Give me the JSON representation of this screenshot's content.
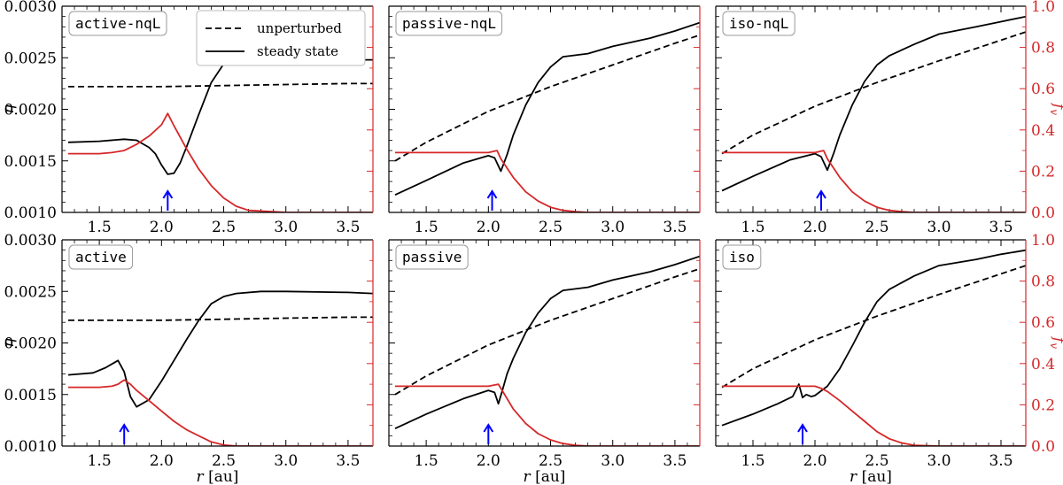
{
  "figure": {
    "xlabel_italic": "r",
    "xlabel_unit": " [au]",
    "ylabel_left": "η",
    "ylabel_right_main": "f",
    "ylabel_right_sub": "v",
    "legend": {
      "dashed_label": "unperturbed",
      "solid_label": "steady state"
    },
    "colors": {
      "steady": "#000000",
      "unperturbed": "#000000",
      "fv": "#d62728",
      "arrow": "#0000ff"
    }
  },
  "chart_data": [
    {
      "type": "line",
      "panel": "active-nqL",
      "label": "active-nqL",
      "row": 0,
      "col": 0,
      "xlim": [
        1.2,
        3.7
      ],
      "ylim_left": [
        0.001,
        0.003
      ],
      "ylim_right": [
        0,
        1
      ],
      "xticks": [
        "1.5",
        "2.0",
        "2.5",
        "3.0",
        "3.5"
      ],
      "yticks_left": [
        "0.0010",
        "0.0015",
        "0.0020",
        "0.0025",
        "0.0030"
      ],
      "yticks_right": [
        "0.0",
        "0.2",
        "0.4",
        "0.6",
        "0.8",
        "1.0"
      ],
      "arrow_x": 2.05,
      "series": [
        {
          "name": "unperturbed",
          "axis": "left",
          "style": "dashed",
          "x": [
            1.25,
            1.5,
            1.75,
            2.0,
            2.5,
            3.0,
            3.5,
            3.7
          ],
          "y": [
            0.00222,
            0.00222,
            0.00222,
            0.00222,
            0.00223,
            0.00224,
            0.00225,
            0.00225
          ]
        },
        {
          "name": "steady state",
          "axis": "left",
          "style": "solid",
          "x": [
            1.25,
            1.5,
            1.7,
            1.8,
            1.9,
            1.95,
            2.0,
            2.05,
            2.1,
            2.15,
            2.2,
            2.3,
            2.4,
            2.5,
            2.6,
            2.8,
            3.0,
            3.5,
            3.7
          ],
          "y": [
            0.00168,
            0.00169,
            0.00171,
            0.0017,
            0.00163,
            0.00157,
            0.00146,
            0.00137,
            0.00138,
            0.00148,
            0.00163,
            0.00195,
            0.00226,
            0.00244,
            0.00249,
            0.0025,
            0.00249,
            0.00248,
            0.00248
          ]
        },
        {
          "name": "fv",
          "axis": "right",
          "style": "solid",
          "x": [
            1.25,
            1.5,
            1.6,
            1.7,
            1.8,
            1.9,
            2.0,
            2.05,
            2.1,
            2.2,
            2.3,
            2.4,
            2.5,
            2.6,
            2.7,
            3.0,
            3.7
          ],
          "y": [
            0.285,
            0.285,
            0.29,
            0.3,
            0.33,
            0.37,
            0.425,
            0.48,
            0.42,
            0.31,
            0.21,
            0.13,
            0.07,
            0.03,
            0.01,
            0.0,
            0.0
          ]
        }
      ]
    },
    {
      "type": "line",
      "panel": "passive-nqL",
      "label": "passive-nqL",
      "row": 0,
      "col": 1,
      "xlim": [
        1.2,
        3.7
      ],
      "ylim_left": [
        0.001,
        0.003
      ],
      "ylim_right": [
        0,
        1
      ],
      "xticks": [
        "1.5",
        "2.0",
        "2.5",
        "3.0",
        "3.5"
      ],
      "yticks_left": [
        "0.0010",
        "0.0015",
        "0.0020",
        "0.0025",
        "0.0030"
      ],
      "yticks_right": [
        "0.0",
        "0.2",
        "0.4",
        "0.6",
        "0.8",
        "1.0"
      ],
      "arrow_x": 2.03,
      "series": [
        {
          "name": "unperturbed",
          "axis": "left",
          "style": "dashed",
          "x": [
            1.25,
            1.5,
            2.0,
            2.5,
            3.0,
            3.5,
            3.7
          ],
          "y": [
            0.0015,
            0.00168,
            0.00198,
            0.00222,
            0.00243,
            0.00264,
            0.00272
          ]
        },
        {
          "name": "steady state",
          "axis": "left",
          "style": "solid",
          "x": [
            1.25,
            1.5,
            1.8,
            2.0,
            2.05,
            2.1,
            2.15,
            2.2,
            2.3,
            2.4,
            2.5,
            2.6,
            2.8,
            3.0,
            3.3,
            3.5,
            3.7
          ],
          "y": [
            0.00117,
            0.00131,
            0.00148,
            0.00155,
            0.00153,
            0.0014,
            0.00156,
            0.00175,
            0.00204,
            0.00226,
            0.00241,
            0.00251,
            0.00254,
            0.00261,
            0.00269,
            0.00276,
            0.00284
          ]
        },
        {
          "name": "fv",
          "axis": "right",
          "style": "solid",
          "x": [
            1.25,
            1.5,
            2.0,
            2.07,
            2.1,
            2.2,
            2.3,
            2.4,
            2.5,
            2.6,
            2.7,
            2.8,
            3.0,
            3.7
          ],
          "y": [
            0.29,
            0.29,
            0.29,
            0.3,
            0.26,
            0.17,
            0.1,
            0.055,
            0.025,
            0.01,
            0.004,
            0.0,
            0.0,
            0.0
          ]
        }
      ]
    },
    {
      "type": "line",
      "panel": "iso-nqL",
      "label": "iso-nqL",
      "row": 0,
      "col": 2,
      "xlim": [
        1.2,
        3.7
      ],
      "ylim_left": [
        0.001,
        0.003
      ],
      "ylim_right": [
        0,
        1
      ],
      "xticks": [
        "1.5",
        "2.0",
        "2.5",
        "3.0",
        "3.5"
      ],
      "yticks_left": [
        "0.0010",
        "0.0015",
        "0.0020",
        "0.0025",
        "0.0030"
      ],
      "yticks_right": [
        "0.0",
        "0.2",
        "0.4",
        "0.6",
        "0.8",
        "1.0"
      ],
      "arrow_x": 2.05,
      "series": [
        {
          "name": "unperturbed",
          "axis": "left",
          "style": "dashed",
          "x": [
            1.25,
            1.5,
            2.0,
            2.5,
            3.0,
            3.5,
            3.7
          ],
          "y": [
            0.00157,
            0.00175,
            0.00203,
            0.00226,
            0.00247,
            0.00267,
            0.00275
          ]
        },
        {
          "name": "steady state",
          "axis": "left",
          "style": "solid",
          "x": [
            1.25,
            1.5,
            1.8,
            2.0,
            2.05,
            2.1,
            2.15,
            2.2,
            2.3,
            2.4,
            2.5,
            2.6,
            2.8,
            3.0,
            3.3,
            3.5,
            3.7
          ],
          "y": [
            0.00121,
            0.00135,
            0.00151,
            0.00157,
            0.00154,
            0.00141,
            0.00157,
            0.00175,
            0.00204,
            0.00227,
            0.00243,
            0.00252,
            0.00263,
            0.00273,
            0.0028,
            0.00285,
            0.0029
          ]
        },
        {
          "name": "fv",
          "axis": "right",
          "style": "solid",
          "x": [
            1.25,
            1.5,
            2.0,
            2.07,
            2.1,
            2.2,
            2.3,
            2.4,
            2.5,
            2.6,
            2.7,
            2.8,
            3.0,
            3.7
          ],
          "y": [
            0.29,
            0.29,
            0.29,
            0.3,
            0.26,
            0.17,
            0.1,
            0.055,
            0.025,
            0.01,
            0.004,
            0.0,
            0.0,
            0.0
          ]
        }
      ]
    },
    {
      "type": "line",
      "panel": "active",
      "label": "active",
      "row": 1,
      "col": 0,
      "xlim": [
        1.2,
        3.7
      ],
      "ylim_left": [
        0.001,
        0.003
      ],
      "ylim_right": [
        0,
        1
      ],
      "xticks": [
        "1.5",
        "2.0",
        "2.5",
        "3.0",
        "3.5"
      ],
      "yticks_left": [
        "0.0010",
        "0.0015",
        "0.0020",
        "0.0025",
        "0.0030"
      ],
      "yticks_right": [
        "0.0",
        "0.2",
        "0.4",
        "0.6",
        "0.8",
        "1.0"
      ],
      "arrow_x": 1.7,
      "series": [
        {
          "name": "unperturbed",
          "axis": "left",
          "style": "dashed",
          "x": [
            1.25,
            1.5,
            1.75,
            2.0,
            2.5,
            3.0,
            3.5,
            3.7
          ],
          "y": [
            0.00222,
            0.00222,
            0.00222,
            0.00222,
            0.00223,
            0.00224,
            0.00225,
            0.00225
          ]
        },
        {
          "name": "steady state",
          "axis": "left",
          "style": "solid",
          "x": [
            1.25,
            1.45,
            1.55,
            1.65,
            1.7,
            1.75,
            1.8,
            1.9,
            2.0,
            2.1,
            2.2,
            2.3,
            2.4,
            2.5,
            2.6,
            2.8,
            3.0,
            3.5,
            3.7
          ],
          "y": [
            0.00169,
            0.00171,
            0.00176,
            0.00183,
            0.00172,
            0.00148,
            0.00138,
            0.00145,
            0.00163,
            0.00183,
            0.00203,
            0.00222,
            0.00238,
            0.00245,
            0.00248,
            0.0025,
            0.0025,
            0.00249,
            0.00248
          ]
        },
        {
          "name": "fv",
          "axis": "right",
          "style": "solid",
          "x": [
            1.25,
            1.5,
            1.6,
            1.65,
            1.7,
            1.75,
            1.8,
            1.9,
            2.0,
            2.1,
            2.2,
            2.3,
            2.4,
            2.5,
            2.6,
            3.0,
            3.7
          ],
          "y": [
            0.285,
            0.285,
            0.29,
            0.3,
            0.32,
            0.3,
            0.27,
            0.22,
            0.17,
            0.12,
            0.08,
            0.05,
            0.02,
            0.005,
            0.0,
            0.0,
            0.0
          ]
        }
      ]
    },
    {
      "type": "line",
      "panel": "passive",
      "label": "passive",
      "row": 1,
      "col": 1,
      "xlim": [
        1.2,
        3.7
      ],
      "ylim_left": [
        0.001,
        0.003
      ],
      "ylim_right": [
        0,
        1
      ],
      "xticks": [
        "1.5",
        "2.0",
        "2.5",
        "3.0",
        "3.5"
      ],
      "yticks_left": [
        "0.0010",
        "0.0015",
        "0.0020",
        "0.0025",
        "0.0030"
      ],
      "yticks_right": [
        "0.0",
        "0.2",
        "0.4",
        "0.6",
        "0.8",
        "1.0"
      ],
      "arrow_x": 2.0,
      "series": [
        {
          "name": "unperturbed",
          "axis": "left",
          "style": "dashed",
          "x": [
            1.25,
            1.5,
            2.0,
            2.5,
            3.0,
            3.5,
            3.7
          ],
          "y": [
            0.0015,
            0.00168,
            0.00198,
            0.00222,
            0.00243,
            0.00264,
            0.00272
          ]
        },
        {
          "name": "steady state",
          "axis": "left",
          "style": "solid",
          "x": [
            1.25,
            1.5,
            1.8,
            2.0,
            2.05,
            2.08,
            2.11,
            2.15,
            2.2,
            2.3,
            2.4,
            2.5,
            2.6,
            2.8,
            3.0,
            3.3,
            3.5,
            3.7
          ],
          "y": [
            0.00117,
            0.00131,
            0.00146,
            0.00154,
            0.00152,
            0.00141,
            0.00153,
            0.0017,
            0.00185,
            0.0021,
            0.00229,
            0.00243,
            0.00251,
            0.00254,
            0.00261,
            0.00269,
            0.00276,
            0.00284
          ]
        },
        {
          "name": "fv",
          "axis": "right",
          "style": "solid",
          "x": [
            1.25,
            1.5,
            2.0,
            2.08,
            2.12,
            2.2,
            2.3,
            2.4,
            2.5,
            2.6,
            2.7,
            2.8,
            3.0,
            3.7
          ],
          "y": [
            0.29,
            0.29,
            0.29,
            0.3,
            0.26,
            0.18,
            0.11,
            0.06,
            0.03,
            0.012,
            0.004,
            0.0,
            0.0,
            0.0
          ]
        }
      ]
    },
    {
      "type": "line",
      "panel": "iso",
      "label": "iso",
      "row": 1,
      "col": 2,
      "xlim": [
        1.2,
        3.7
      ],
      "ylim_left": [
        0.001,
        0.003
      ],
      "ylim_right": [
        0,
        1
      ],
      "xticks": [
        "1.5",
        "2.0",
        "2.5",
        "3.0",
        "3.5"
      ],
      "yticks_left": [
        "0.0010",
        "0.0015",
        "0.0020",
        "0.0025",
        "0.0030"
      ],
      "yticks_right": [
        "0.0",
        "0.2",
        "0.4",
        "0.6",
        "0.8",
        "1.0"
      ],
      "arrow_x": 1.9,
      "series": [
        {
          "name": "unperturbed",
          "axis": "left",
          "style": "dashed",
          "x": [
            1.25,
            1.5,
            2.0,
            2.5,
            3.0,
            3.5,
            3.7
          ],
          "y": [
            0.00157,
            0.00175,
            0.00203,
            0.00226,
            0.00247,
            0.00267,
            0.00275
          ]
        },
        {
          "name": "steady state",
          "axis": "left",
          "style": "solid",
          "x": [
            1.25,
            1.5,
            1.7,
            1.82,
            1.87,
            1.9,
            1.93,
            1.97,
            2.0,
            2.1,
            2.2,
            2.3,
            2.4,
            2.5,
            2.6,
            2.8,
            3.0,
            3.3,
            3.5,
            3.7
          ],
          "y": [
            0.0012,
            0.00131,
            0.00141,
            0.00148,
            0.0016,
            0.00147,
            0.0015,
            0.00148,
            0.00149,
            0.00158,
            0.00175,
            0.00197,
            0.0022,
            0.0024,
            0.00252,
            0.00265,
            0.00275,
            0.00281,
            0.00286,
            0.0029
          ]
        },
        {
          "name": "fv",
          "axis": "right",
          "style": "solid",
          "x": [
            1.25,
            1.5,
            1.8,
            1.9,
            2.0,
            2.05,
            2.1,
            2.2,
            2.3,
            2.4,
            2.5,
            2.6,
            2.7,
            2.8,
            3.0,
            3.7
          ],
          "y": [
            0.29,
            0.29,
            0.29,
            0.29,
            0.29,
            0.28,
            0.265,
            0.22,
            0.17,
            0.12,
            0.07,
            0.035,
            0.015,
            0.004,
            0.0,
            0.0
          ]
        }
      ]
    }
  ]
}
